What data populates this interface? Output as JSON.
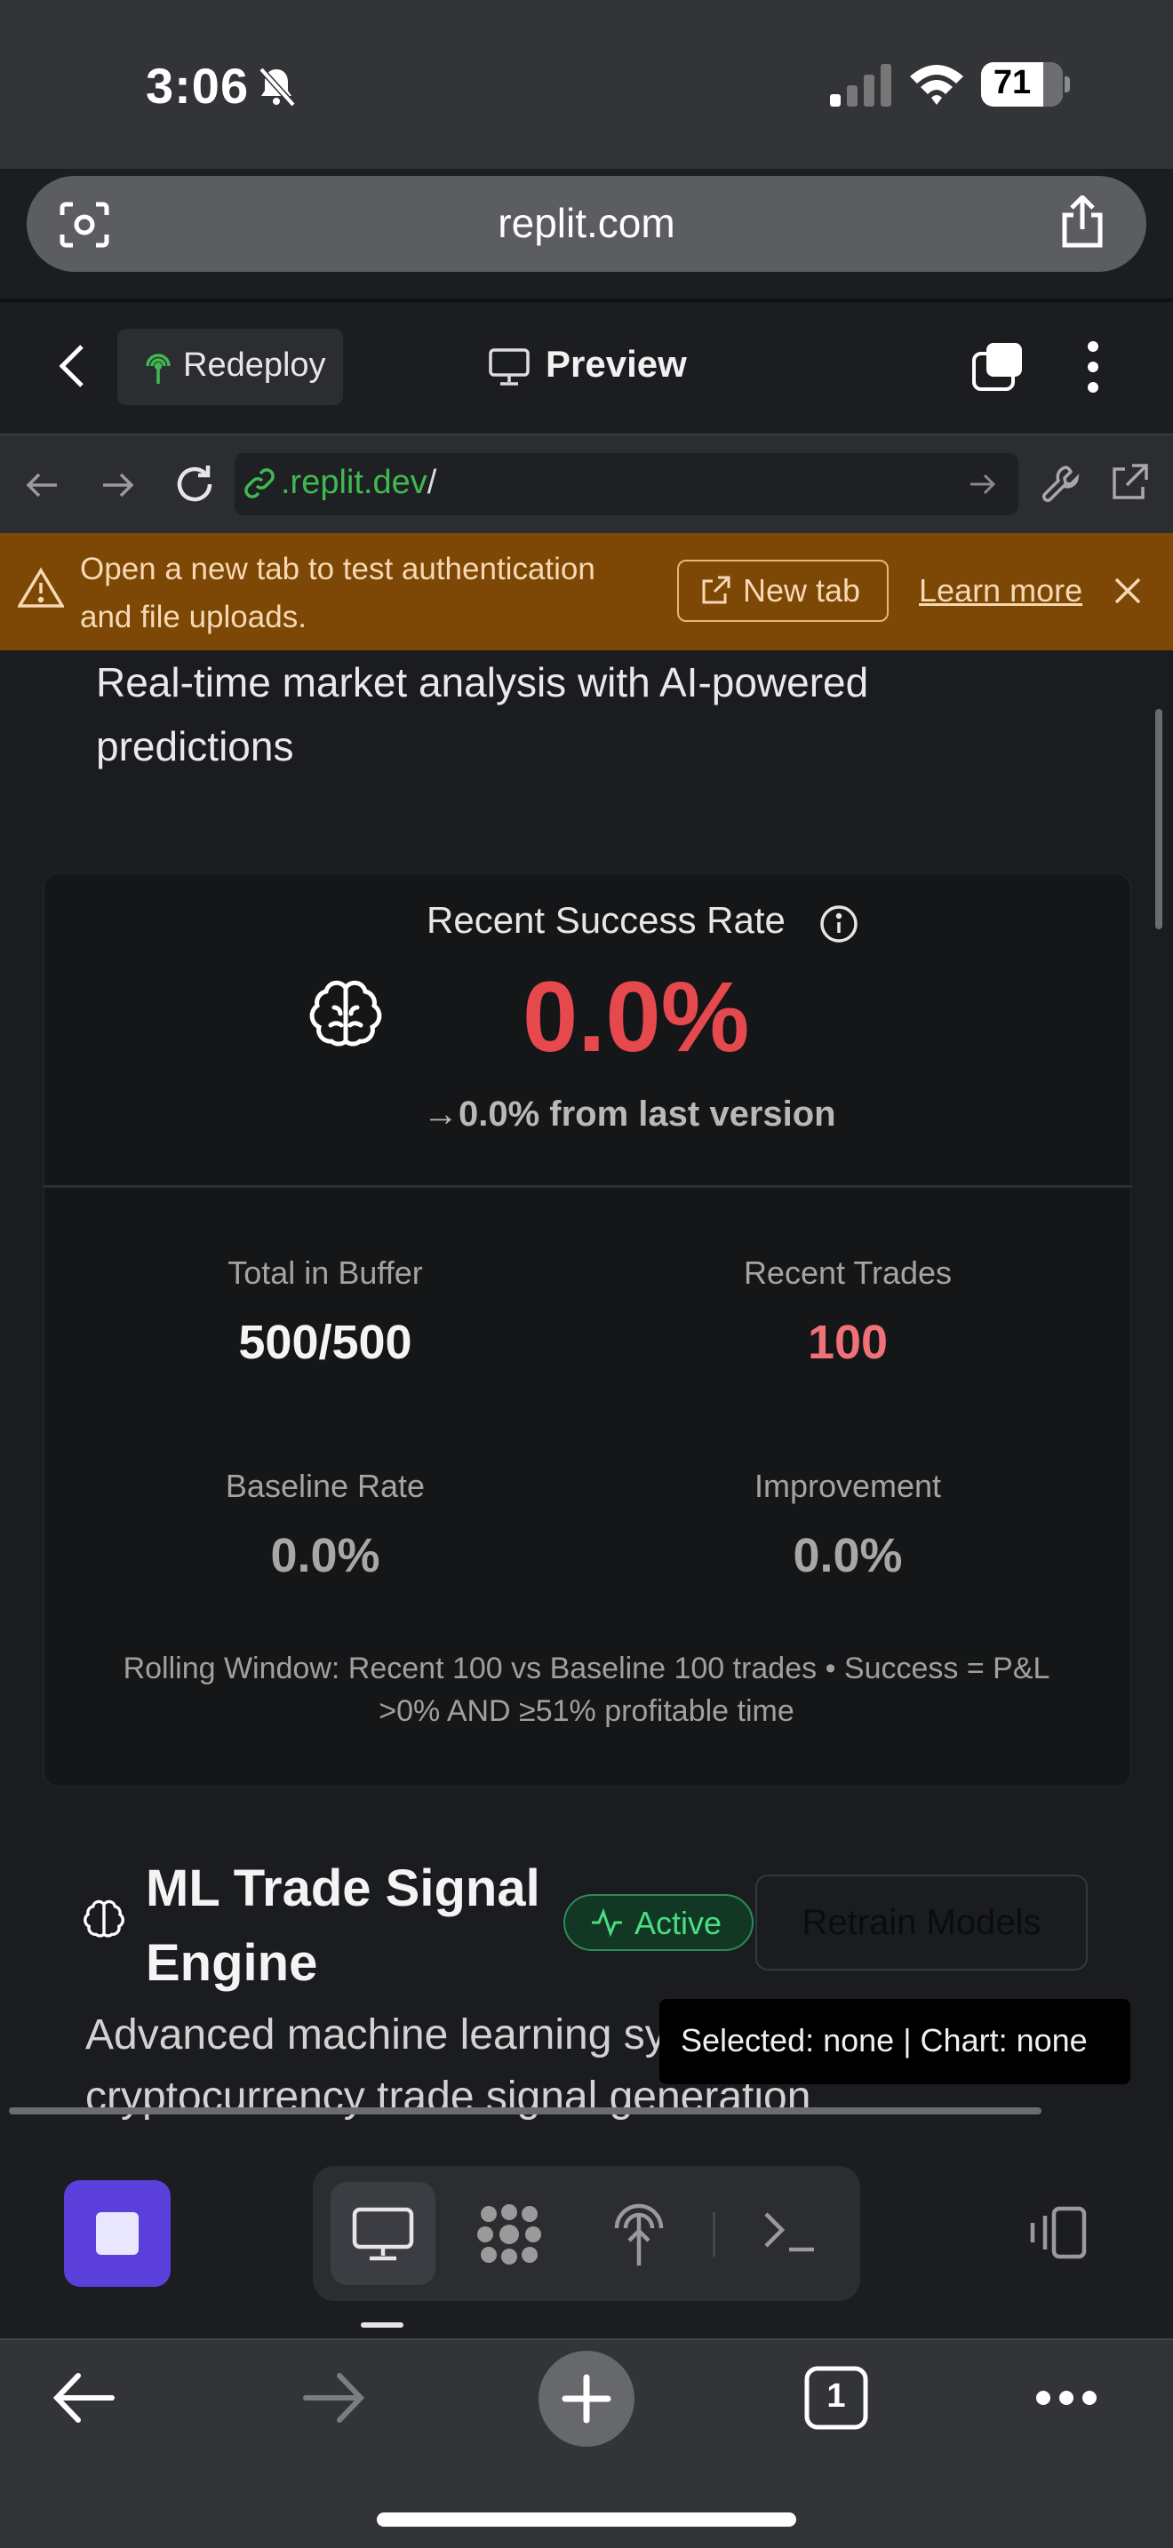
{
  "status_bar": {
    "time": "3:06",
    "battery": "71"
  },
  "browser": {
    "address": "replit.com"
  },
  "replit_header": {
    "redeploy_label": "Redeploy",
    "preview_label": "Preview"
  },
  "webview": {
    "url_host": ".replit.dev",
    "url_path": "/"
  },
  "banner": {
    "message": "Open a new tab to test authentication and file uploads.",
    "new_tab_label": "New tab",
    "learn_more_label": "Learn more",
    "color": "#7d4806"
  },
  "page": {
    "subtitle": "Real-time market analysis with AI-powered predictions",
    "success": {
      "title": "Recent Success Rate",
      "value": "0.0%",
      "delta": "→0.0% from last version",
      "value_color": "#e5484d"
    },
    "metrics": [
      {
        "label": "Total in Buffer",
        "value": "500/500"
      },
      {
        "label": "Recent Trades",
        "value": "100"
      },
      {
        "label": "Baseline Rate",
        "value": "0.0%"
      },
      {
        "label": "Improvement",
        "value": "0.0%"
      }
    ],
    "rolling_note": "Rolling Window: Recent 100 vs Baseline 100 trades • Success = P&L >0% AND ≥51% profitable time",
    "ml_engine": {
      "title": "ML Trade Signal Engine",
      "status": "Active",
      "retrain_label": "Retrain Models",
      "description": "Advanced machine learning system for cryptocurrency trade signal generation"
    },
    "debug_overlay": "Selected: none | Chart: none"
  },
  "safari_toolbar": {
    "tab_count": "1"
  },
  "icons": [
    "camera-lens-icon",
    "share-icon",
    "back-chevron-icon",
    "redeploy-icon",
    "monitor-icon",
    "tabs-icon",
    "kebab-icon",
    "refresh-icon",
    "link-icon",
    "wrench-icon",
    "external-link-icon",
    "warning-icon",
    "close-icon",
    "info-icon",
    "brain-icon",
    "pulse-icon",
    "plus-icon",
    "more-icon"
  ],
  "accent": {
    "replit_stop": "#5b3fdb",
    "active_green": "#4ade80"
  }
}
